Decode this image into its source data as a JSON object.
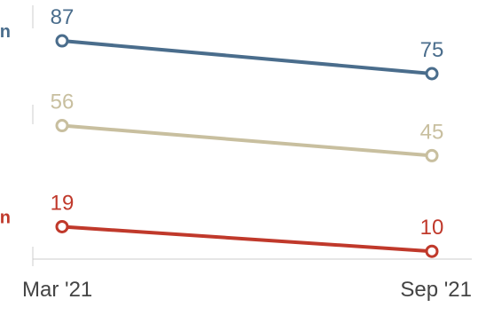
{
  "chart_data": {
    "type": "line",
    "x": [
      "Mar '21",
      "Sep '21"
    ],
    "series": [
      {
        "name": "n",
        "values": [
          87,
          75
        ],
        "color": "#4a6d8c"
      },
      {
        "name": "",
        "values": [
          56,
          45
        ],
        "color": "#c8bf9f"
      },
      {
        "name": "n",
        "values": [
          19,
          10
        ],
        "color": "#c0392b"
      }
    ],
    "ylim": [
      0,
      100
    ],
    "grid": false
  }
}
